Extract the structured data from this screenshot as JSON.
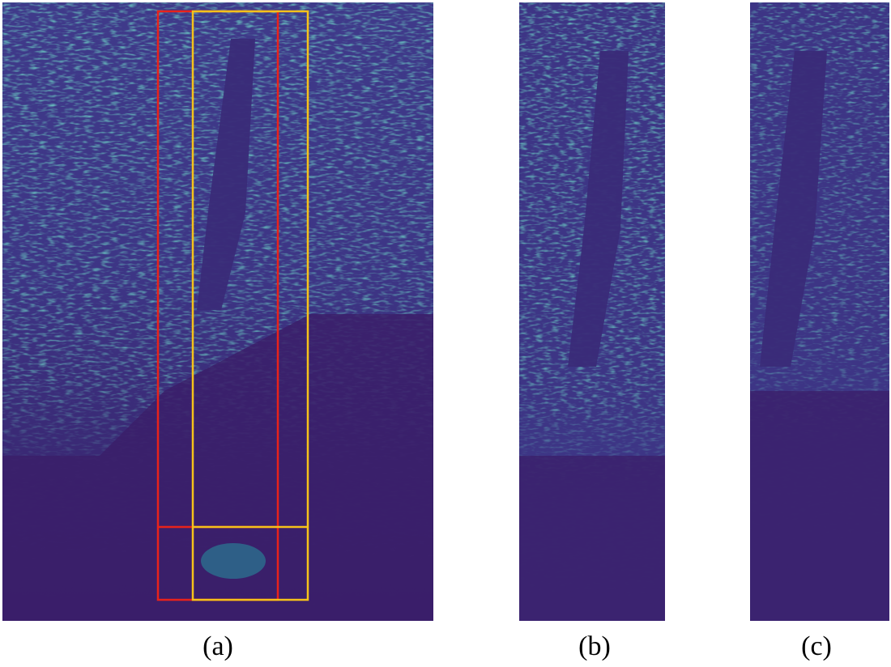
{
  "figure": {
    "panels": [
      {
        "id": "a",
        "caption": "(a)"
      },
      {
        "id": "b",
        "caption": "(b)"
      },
      {
        "id": "c",
        "caption": "(c)"
      }
    ],
    "colors": {
      "background_dark": "#3b1f6a",
      "background_mid": "#46327e",
      "speckle_teal": "#1f9e89",
      "speckle_green": "#35b779",
      "speckle_yellow": "#fde725",
      "box_red": "#e8221b",
      "box_yellow": "#f6c21a"
    }
  }
}
